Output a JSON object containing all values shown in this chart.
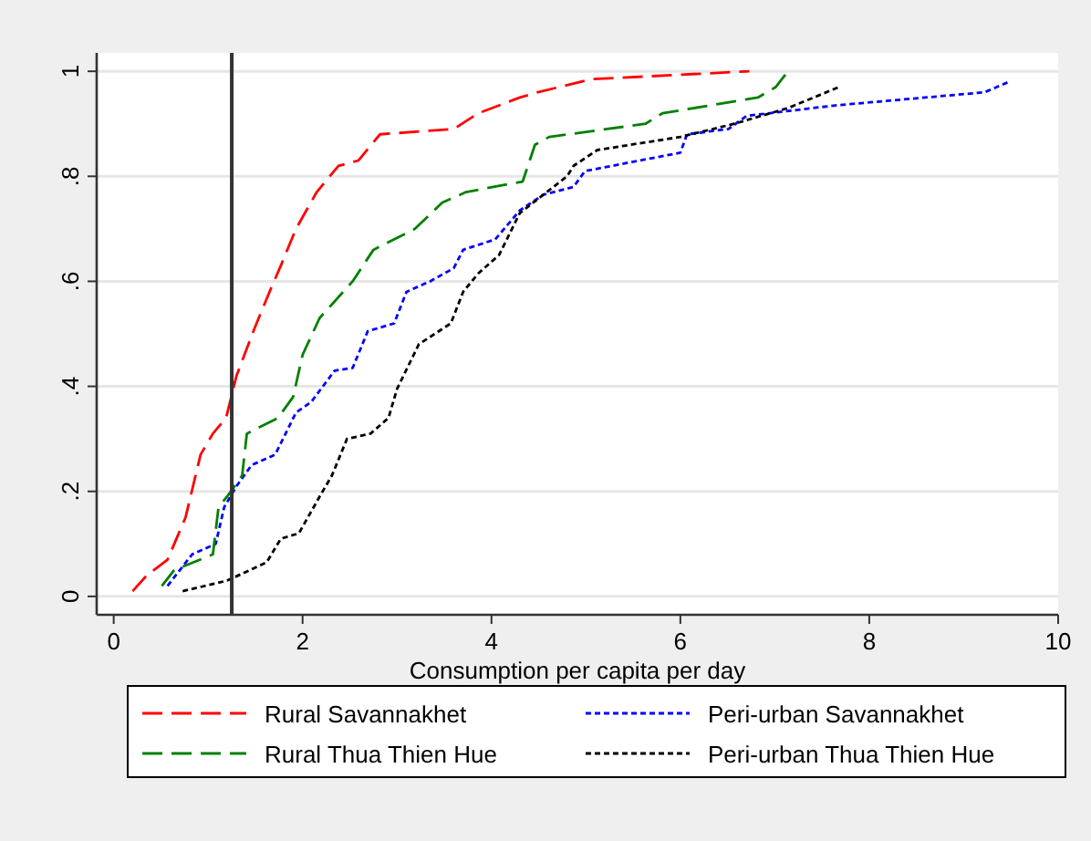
{
  "chart_data": {
    "type": "line",
    "xlabel": "Consumption per capita per day",
    "xlim": [
      -0.18,
      10
    ],
    "xticks": [
      0,
      2,
      4,
      6,
      8,
      10
    ],
    "ylim": [
      -0.035,
      1.035
    ],
    "yticks": [
      {
        "value": 0,
        "label": "0"
      },
      {
        "value": 0.2,
        "label": ".2"
      },
      {
        "value": 0.4,
        "label": ".4"
      },
      {
        "value": 0.6,
        "label": ".6"
      },
      {
        "value": 0.8,
        "label": ".8"
      },
      {
        "value": 1,
        "label": "1"
      }
    ],
    "grid": "y",
    "legend": "bottom",
    "ref_lines": [
      {
        "axis": "x",
        "value": 1.25,
        "color": "#333333"
      }
    ],
    "series": [
      {
        "name": "Rural Savannakhet",
        "color": "#ff0000",
        "line_style": "dashed",
        "x": [
          0.2,
          0.35,
          0.57,
          0.76,
          0.92,
          1.05,
          1.19,
          1.3,
          1.49,
          1.65,
          1.77,
          1.93,
          2.15,
          2.38,
          2.59,
          2.82,
          3.6,
          3.86,
          4.3,
          4.49,
          5.06,
          6.73
        ],
        "values": [
          0.01,
          0.04,
          0.07,
          0.15,
          0.27,
          0.31,
          0.34,
          0.42,
          0.51,
          0.58,
          0.63,
          0.7,
          0.77,
          0.82,
          0.83,
          0.88,
          0.89,
          0.92,
          0.95,
          0.96,
          0.985,
          1.0
        ]
      },
      {
        "name": "Peri-urban Savannakhet",
        "color": "#0000ff",
        "line_style": "dotted",
        "x": [
          0.57,
          0.83,
          1.08,
          1.17,
          1.3,
          1.46,
          1.71,
          1.93,
          2.09,
          2.34,
          2.53,
          2.69,
          2.97,
          3.1,
          3.35,
          3.6,
          3.7,
          4.04,
          4.3,
          4.55,
          4.87,
          4.99,
          6.0,
          6.07,
          6.51,
          6.7,
          7.64,
          9.22,
          9.48
        ],
        "values": [
          0.02,
          0.08,
          0.1,
          0.17,
          0.21,
          0.25,
          0.27,
          0.35,
          0.37,
          0.43,
          0.435,
          0.505,
          0.52,
          0.58,
          0.6,
          0.625,
          0.66,
          0.68,
          0.735,
          0.765,
          0.78,
          0.81,
          0.845,
          0.88,
          0.89,
          0.915,
          0.935,
          0.96,
          0.98
        ]
      },
      {
        "name": "Rural Thua Thien Hue",
        "color": "#008000",
        "line_style": "dashed",
        "x": [
          0.51,
          0.64,
          1.05,
          1.11,
          1.2,
          1.36,
          1.41,
          1.74,
          1.9,
          2.0,
          2.18,
          2.53,
          2.75,
          3.19,
          3.48,
          3.73,
          4.33,
          4.46,
          4.61,
          5.63,
          5.81,
          6.82,
          7.01,
          7.14
        ],
        "values": [
          0.02,
          0.05,
          0.08,
          0.17,
          0.19,
          0.23,
          0.31,
          0.34,
          0.38,
          0.46,
          0.53,
          0.6,
          0.66,
          0.7,
          0.75,
          0.77,
          0.79,
          0.86,
          0.875,
          0.9,
          0.92,
          0.95,
          0.97,
          1.0
        ]
      },
      {
        "name": "Peri-urban Thua Thien Hue",
        "color": "#000000",
        "line_style": "dotted",
        "x": [
          0.73,
          1.2,
          1.62,
          1.77,
          1.96,
          2.18,
          2.31,
          2.47,
          2.72,
          2.91,
          3.0,
          3.23,
          3.57,
          3.7,
          3.86,
          4.08,
          4.3,
          4.55,
          4.8,
          4.87,
          5.12,
          6.0,
          6.57,
          7.14,
          7.68
        ],
        "values": [
          0.01,
          0.03,
          0.065,
          0.11,
          0.12,
          0.19,
          0.23,
          0.3,
          0.31,
          0.34,
          0.395,
          0.48,
          0.52,
          0.58,
          0.615,
          0.65,
          0.73,
          0.765,
          0.8,
          0.82,
          0.85,
          0.875,
          0.9,
          0.93,
          0.97
        ]
      }
    ]
  }
}
